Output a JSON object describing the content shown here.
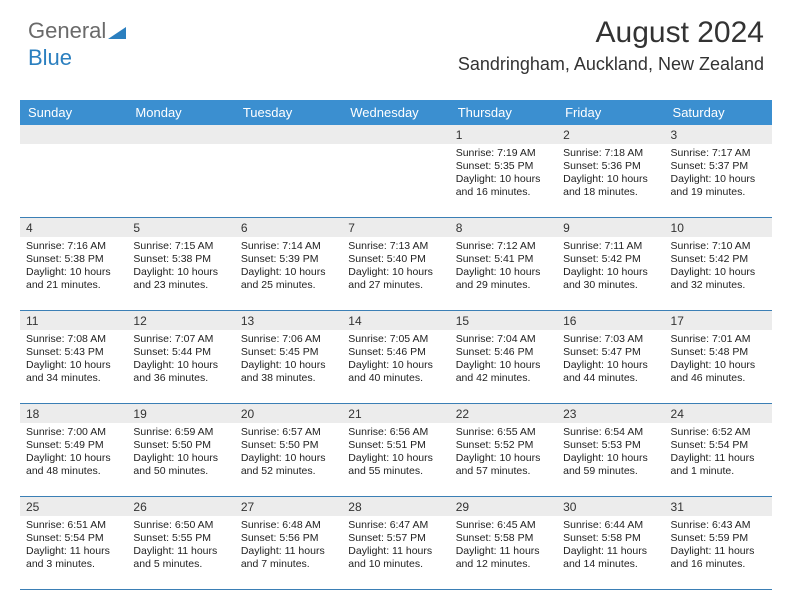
{
  "logo": {
    "text_gray": "General",
    "text_blue": "Blue",
    "triangle_color": "#2b7fbf"
  },
  "header": {
    "title": "August 2024",
    "subtitle": "Sandringham, Auckland, New Zealand"
  },
  "colors": {
    "header_bar": "#3b8fd0",
    "week_divider": "#3b7fb5",
    "daynum_bg": "#ececec",
    "background": "#ffffff"
  },
  "day_names": [
    "Sunday",
    "Monday",
    "Tuesday",
    "Wednesday",
    "Thursday",
    "Friday",
    "Saturday"
  ],
  "weeks": [
    [
      {
        "n": "",
        "sr": "",
        "ss": "",
        "dl": ""
      },
      {
        "n": "",
        "sr": "",
        "ss": "",
        "dl": ""
      },
      {
        "n": "",
        "sr": "",
        "ss": "",
        "dl": ""
      },
      {
        "n": "",
        "sr": "",
        "ss": "",
        "dl": ""
      },
      {
        "n": "1",
        "sr": "Sunrise: 7:19 AM",
        "ss": "Sunset: 5:35 PM",
        "dl": "Daylight: 10 hours and 16 minutes."
      },
      {
        "n": "2",
        "sr": "Sunrise: 7:18 AM",
        "ss": "Sunset: 5:36 PM",
        "dl": "Daylight: 10 hours and 18 minutes."
      },
      {
        "n": "3",
        "sr": "Sunrise: 7:17 AM",
        "ss": "Sunset: 5:37 PM",
        "dl": "Daylight: 10 hours and 19 minutes."
      }
    ],
    [
      {
        "n": "4",
        "sr": "Sunrise: 7:16 AM",
        "ss": "Sunset: 5:38 PM",
        "dl": "Daylight: 10 hours and 21 minutes."
      },
      {
        "n": "5",
        "sr": "Sunrise: 7:15 AM",
        "ss": "Sunset: 5:38 PM",
        "dl": "Daylight: 10 hours and 23 minutes."
      },
      {
        "n": "6",
        "sr": "Sunrise: 7:14 AM",
        "ss": "Sunset: 5:39 PM",
        "dl": "Daylight: 10 hours and 25 minutes."
      },
      {
        "n": "7",
        "sr": "Sunrise: 7:13 AM",
        "ss": "Sunset: 5:40 PM",
        "dl": "Daylight: 10 hours and 27 minutes."
      },
      {
        "n": "8",
        "sr": "Sunrise: 7:12 AM",
        "ss": "Sunset: 5:41 PM",
        "dl": "Daylight: 10 hours and 29 minutes."
      },
      {
        "n": "9",
        "sr": "Sunrise: 7:11 AM",
        "ss": "Sunset: 5:42 PM",
        "dl": "Daylight: 10 hours and 30 minutes."
      },
      {
        "n": "10",
        "sr": "Sunrise: 7:10 AM",
        "ss": "Sunset: 5:42 PM",
        "dl": "Daylight: 10 hours and 32 minutes."
      }
    ],
    [
      {
        "n": "11",
        "sr": "Sunrise: 7:08 AM",
        "ss": "Sunset: 5:43 PM",
        "dl": "Daylight: 10 hours and 34 minutes."
      },
      {
        "n": "12",
        "sr": "Sunrise: 7:07 AM",
        "ss": "Sunset: 5:44 PM",
        "dl": "Daylight: 10 hours and 36 minutes."
      },
      {
        "n": "13",
        "sr": "Sunrise: 7:06 AM",
        "ss": "Sunset: 5:45 PM",
        "dl": "Daylight: 10 hours and 38 minutes."
      },
      {
        "n": "14",
        "sr": "Sunrise: 7:05 AM",
        "ss": "Sunset: 5:46 PM",
        "dl": "Daylight: 10 hours and 40 minutes."
      },
      {
        "n": "15",
        "sr": "Sunrise: 7:04 AM",
        "ss": "Sunset: 5:46 PM",
        "dl": "Daylight: 10 hours and 42 minutes."
      },
      {
        "n": "16",
        "sr": "Sunrise: 7:03 AM",
        "ss": "Sunset: 5:47 PM",
        "dl": "Daylight: 10 hours and 44 minutes."
      },
      {
        "n": "17",
        "sr": "Sunrise: 7:01 AM",
        "ss": "Sunset: 5:48 PM",
        "dl": "Daylight: 10 hours and 46 minutes."
      }
    ],
    [
      {
        "n": "18",
        "sr": "Sunrise: 7:00 AM",
        "ss": "Sunset: 5:49 PM",
        "dl": "Daylight: 10 hours and 48 minutes."
      },
      {
        "n": "19",
        "sr": "Sunrise: 6:59 AM",
        "ss": "Sunset: 5:50 PM",
        "dl": "Daylight: 10 hours and 50 minutes."
      },
      {
        "n": "20",
        "sr": "Sunrise: 6:57 AM",
        "ss": "Sunset: 5:50 PM",
        "dl": "Daylight: 10 hours and 52 minutes."
      },
      {
        "n": "21",
        "sr": "Sunrise: 6:56 AM",
        "ss": "Sunset: 5:51 PM",
        "dl": "Daylight: 10 hours and 55 minutes."
      },
      {
        "n": "22",
        "sr": "Sunrise: 6:55 AM",
        "ss": "Sunset: 5:52 PM",
        "dl": "Daylight: 10 hours and 57 minutes."
      },
      {
        "n": "23",
        "sr": "Sunrise: 6:54 AM",
        "ss": "Sunset: 5:53 PM",
        "dl": "Daylight: 10 hours and 59 minutes."
      },
      {
        "n": "24",
        "sr": "Sunrise: 6:52 AM",
        "ss": "Sunset: 5:54 PM",
        "dl": "Daylight: 11 hours and 1 minute."
      }
    ],
    [
      {
        "n": "25",
        "sr": "Sunrise: 6:51 AM",
        "ss": "Sunset: 5:54 PM",
        "dl": "Daylight: 11 hours and 3 minutes."
      },
      {
        "n": "26",
        "sr": "Sunrise: 6:50 AM",
        "ss": "Sunset: 5:55 PM",
        "dl": "Daylight: 11 hours and 5 minutes."
      },
      {
        "n": "27",
        "sr": "Sunrise: 6:48 AM",
        "ss": "Sunset: 5:56 PM",
        "dl": "Daylight: 11 hours and 7 minutes."
      },
      {
        "n": "28",
        "sr": "Sunrise: 6:47 AM",
        "ss": "Sunset: 5:57 PM",
        "dl": "Daylight: 11 hours and 10 minutes."
      },
      {
        "n": "29",
        "sr": "Sunrise: 6:45 AM",
        "ss": "Sunset: 5:58 PM",
        "dl": "Daylight: 11 hours and 12 minutes."
      },
      {
        "n": "30",
        "sr": "Sunrise: 6:44 AM",
        "ss": "Sunset: 5:58 PM",
        "dl": "Daylight: 11 hours and 14 minutes."
      },
      {
        "n": "31",
        "sr": "Sunrise: 6:43 AM",
        "ss": "Sunset: 5:59 PM",
        "dl": "Daylight: 11 hours and 16 minutes."
      }
    ]
  ]
}
